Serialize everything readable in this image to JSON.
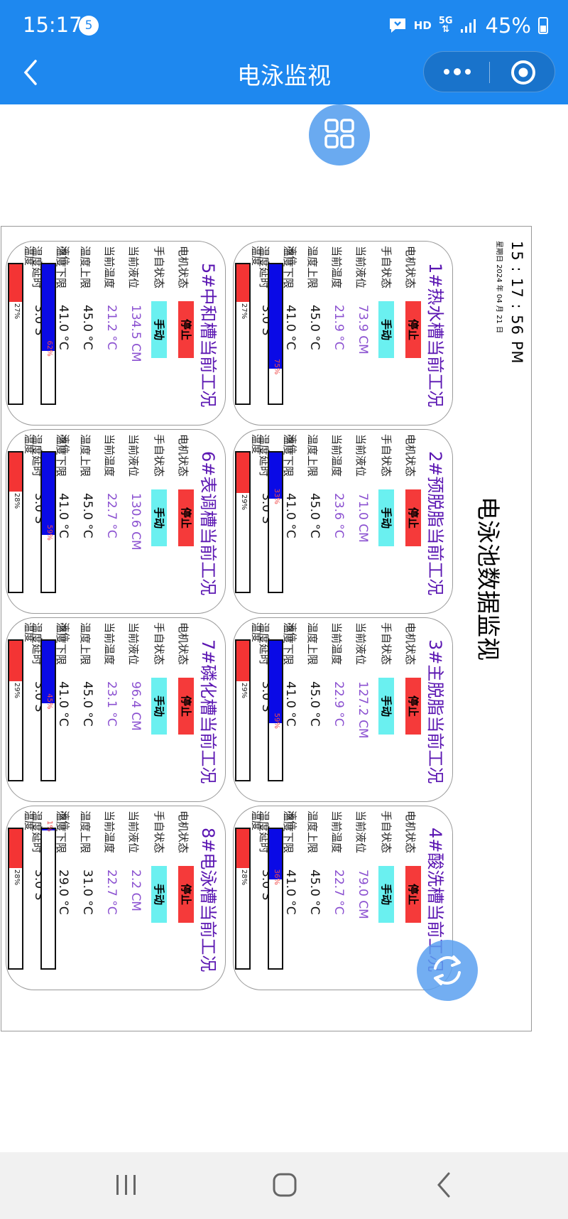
{
  "status_bar": {
    "time": "15:17",
    "notif_count": "5",
    "hd": "HD",
    "net": "5G",
    "battery": "45%"
  },
  "nav": {
    "title": "电泳监视",
    "more_icon": "more-dots-icon",
    "target_icon": "target-icon",
    "back_icon": "chevron-left-icon"
  },
  "dashboard": {
    "clock": "15 : 17 : 56  PM",
    "date": "星期日  2024 年 04 月 21 日",
    "title": "电泳池数据监视",
    "labels": {
      "motor": "电机状态",
      "mode": "手自状态",
      "level": "当前液位",
      "temp": "当前温度",
      "upper": "温度上限",
      "lower": "温度下限",
      "delay": "温度延时",
      "level_bar": "液位",
      "temp_bar": "温度"
    },
    "tanks": [
      {
        "title": "1#热水槽当前工况",
        "motor": "停止",
        "mode": "手动",
        "level": "73.9 CM",
        "temp": "21.9 °C",
        "upper": "45.0 °C",
        "lower": "41.0 °C",
        "delay": "3.0 S",
        "level_pct": 75,
        "temp_pct": 27,
        "level_pct_text": "75%",
        "temp_pct_text": "27%"
      },
      {
        "title": "2#预脱脂当前工况",
        "motor": "停止",
        "mode": "手动",
        "level": "71.0 CM",
        "temp": "23.6 °C",
        "upper": "45.0 °C",
        "lower": "41.0 °C",
        "delay": "3.0 S",
        "level_pct": 33,
        "temp_pct": 29,
        "level_pct_text": "33%",
        "temp_pct_text": "29%"
      },
      {
        "title": "3#主脱脂当前工况",
        "motor": "停止",
        "mode": "手动",
        "level": "127.2 CM",
        "temp": "22.9 °C",
        "upper": "45.0 °C",
        "lower": "41.0 °C",
        "delay": "3.0 S",
        "level_pct": 59,
        "temp_pct": 29,
        "level_pct_text": "59%",
        "temp_pct_text": "29%"
      },
      {
        "title": "4#酸洗槽当前工况",
        "motor": "停止",
        "mode": "手动",
        "level": "79.0 CM",
        "temp": "22.7 °C",
        "upper": "45.0 °C",
        "lower": "41.0 °C",
        "delay": "3.0 S",
        "level_pct": 36,
        "temp_pct": 28,
        "level_pct_text": "36%",
        "temp_pct_text": "28%"
      },
      {
        "title": "5#中和槽当前工况",
        "motor": "停止",
        "mode": "手动",
        "level": "134.5 CM",
        "temp": "21.2 °C",
        "upper": "45.0 °C",
        "lower": "41.0 °C",
        "delay": "3.0 S",
        "level_pct": 62,
        "temp_pct": 27,
        "level_pct_text": "62%",
        "temp_pct_text": "27%"
      },
      {
        "title": "6#表调槽当前工况",
        "motor": "停止",
        "mode": "手动",
        "level": "130.6 CM",
        "temp": "22.7 °C",
        "upper": "45.0 °C",
        "lower": "41.0 °C",
        "delay": "3.0 S",
        "level_pct": 59,
        "temp_pct": 28,
        "level_pct_text": "59%",
        "temp_pct_text": "28%"
      },
      {
        "title": "7#磷化槽当前工况",
        "motor": "停止",
        "mode": "手动",
        "level": "96.4 CM",
        "temp": "23.1 °C",
        "upper": "45.0 °C",
        "lower": "41.0 °C",
        "delay": "3.0 S",
        "level_pct": 45,
        "temp_pct": 29,
        "level_pct_text": "45%",
        "temp_pct_text": "29%"
      },
      {
        "title": "8#电泳槽当前工况",
        "motor": "停止",
        "mode": "手动",
        "level": "2.2 CM",
        "temp": "22.7 °C",
        "upper": "31.0 °C",
        "lower": "29.0 °C",
        "delay": "3.0 S",
        "level_pct": 1,
        "temp_pct": 28,
        "level_pct_text": "1%",
        "temp_pct_text": "28%"
      }
    ]
  },
  "colors": {
    "primary": "#1e88ef",
    "title_purple": "#5b16b2",
    "value_purple": "#8a4fd0",
    "level_blue": "#0a0ae6",
    "temp_red": "#f43434",
    "motor_red": "#f53a3a",
    "mode_cyan": "#6af0f0"
  },
  "bottom_nav": {
    "recent_icon": "recent-apps-icon",
    "home_icon": "home-icon",
    "back_icon": "back-icon"
  }
}
